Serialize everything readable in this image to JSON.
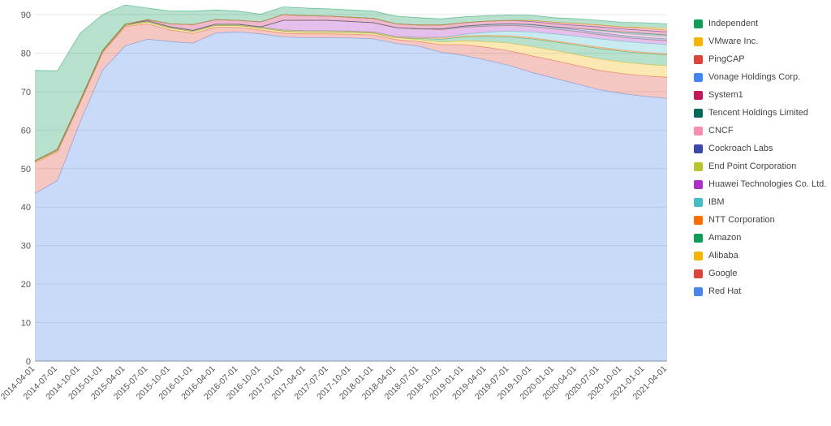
{
  "chart_data": {
    "type": "area",
    "stacked": true,
    "categories": [
      "2014-04-01",
      "2014-07-01",
      "2014-10-01",
      "2015-01-01",
      "2015-04-01",
      "2015-07-01",
      "2015-10-01",
      "2016-01-01",
      "2016-04-01",
      "2016-07-01",
      "2016-10-01",
      "2017-01-01",
      "2017-04-01",
      "2017-07-01",
      "2017-10-01",
      "2018-01-01",
      "2018-04-01",
      "2018-07-01",
      "2018-10-01",
      "2019-01-01",
      "2019-04-01",
      "2019-07-01",
      "2019-10-01",
      "2020-01-01",
      "2020-04-01",
      "2020-07-01",
      "2020-10-01",
      "2021-01-01",
      "2021-04-01"
    ],
    "ylim": [
      0,
      90
    ],
    "yticks": [
      0,
      10,
      20,
      30,
      40,
      50,
      60,
      70,
      80,
      90
    ],
    "grid": true,
    "legend_position": "right",
    "series": [
      {
        "name": "Red Hat",
        "color": "#4a86e8",
        "values": [
          43.5,
          46.9,
          62,
          75.6,
          81.9,
          83.6,
          83,
          82.6,
          85.2,
          85.5,
          85,
          84.2,
          84,
          84,
          83.9,
          83.7,
          82.5,
          81.8,
          80.2,
          79.4,
          78.2,
          76.8,
          75,
          73.5,
          72,
          70.5,
          69.5,
          68.8,
          68.2
        ]
      },
      {
        "name": "Google",
        "color": "#db4437",
        "values": [
          8,
          7.5,
          5,
          4.5,
          5,
          4,
          3,
          2.5,
          1.5,
          1.2,
          1,
          1,
          1,
          1,
          1,
          1,
          1,
          1.2,
          2,
          2.8,
          3.3,
          3.8,
          4.3,
          4.6,
          4.8,
          5,
          5.2,
          5.3,
          5.5
        ]
      },
      {
        "name": "Alibaba",
        "color": "#f4b400",
        "values": [
          0.3,
          0.3,
          0.3,
          0.3,
          0.3,
          0.5,
          0.5,
          0.5,
          0.5,
          0.5,
          0.5,
          0.5,
          0.5,
          0.5,
          0.5,
          0.5,
          0.5,
          0.5,
          0.7,
          1,
          1.5,
          2,
          2.4,
          2.6,
          2.8,
          3,
          3,
          3,
          3
        ]
      },
      {
        "name": "Amazon",
        "color": "#0f9d58",
        "values": [
          0,
          0,
          0,
          0,
          0,
          0,
          0,
          0,
          0,
          0,
          0,
          0,
          0,
          0,
          0,
          0,
          0,
          0.3,
          0.7,
          1,
          1.3,
          1.6,
          2,
          2.2,
          2.5,
          2.7,
          2.8,
          2.8,
          2.8
        ]
      },
      {
        "name": "NTT Corporation",
        "color": "#ff6d01",
        "values": [
          0.2,
          0.3,
          0.3,
          0.3,
          0.3,
          0.3,
          0.3,
          0.3,
          0.3,
          0.3,
          0.3,
          0.3,
          0.3,
          0.3,
          0.3,
          0.3,
          0.3,
          0.3,
          0.3,
          0.3,
          0.3,
          0.3,
          0.3,
          0.3,
          0.3,
          0.3,
          0.3,
          0.3,
          0.3
        ]
      },
      {
        "name": "IBM",
        "color": "#46bdc6",
        "values": [
          0,
          0,
          0,
          0,
          0,
          0,
          0,
          0,
          0,
          0,
          0,
          0,
          0,
          0,
          0,
          0,
          0,
          0,
          0.2,
          0.4,
          0.8,
          1.2,
          1.5,
          1.8,
          2,
          2.2,
          2.3,
          2.4,
          2.4
        ]
      },
      {
        "name": "Huawei Technologies Co. Ltd.",
        "color": "#ab30c4",
        "values": [
          0,
          0,
          0,
          0,
          0,
          0,
          0,
          0,
          0,
          0,
          0,
          2.5,
          2.7,
          2.7,
          2.5,
          2.4,
          2.3,
          2.2,
          2,
          1.8,
          1.6,
          1.5,
          1.4,
          1.3,
          1.2,
          1.1,
          1,
          1,
          1
        ]
      },
      {
        "name": "End Point Corporation",
        "color": "#b9c32e",
        "values": [
          0,
          0,
          0,
          0,
          0,
          0,
          0,
          0,
          0,
          0,
          0,
          0,
          0,
          0,
          0,
          0,
          0,
          0,
          0,
          0,
          0,
          0,
          0,
          0,
          0,
          0,
          0,
          0,
          0
        ]
      },
      {
        "name": "Cockroach Labs",
        "color": "#3949ab",
        "values": [
          0,
          0,
          0,
          0,
          0,
          0,
          0,
          0,
          0,
          0,
          0,
          0,
          0,
          0,
          0,
          0,
          0,
          0,
          0.2,
          0.3,
          0.4,
          0.4,
          0.5,
          0.5,
          0.5,
          0.5,
          0.5,
          0.5,
          0.5
        ]
      },
      {
        "name": "CNCF",
        "color": "#f48fb1",
        "values": [
          0,
          0,
          0,
          0,
          0,
          0,
          0,
          0,
          0,
          0,
          0,
          0,
          0,
          0,
          0,
          0,
          0,
          0,
          0,
          0,
          0,
          0,
          0,
          0,
          0.3,
          0.4,
          0.5,
          0.5,
          0.5
        ]
      },
      {
        "name": "Tencent Holdings Limited",
        "color": "#00695c",
        "values": [
          0,
          0,
          0,
          0,
          0,
          0,
          0,
          0,
          0,
          0,
          0,
          0,
          0,
          0,
          0,
          0,
          0,
          0,
          0,
          0,
          0,
          0,
          0,
          0,
          0,
          0.3,
          0.4,
          0.5,
          0.5
        ]
      },
      {
        "name": "System1",
        "color": "#c2185b",
        "values": [
          0,
          0,
          0,
          0,
          0,
          0.3,
          0.8,
          1.5,
          1.2,
          1,
          1.3,
          1.5,
          1.2,
          1.1,
          1.1,
          1.1,
          1,
          1,
          1,
          0.9,
          0.9,
          0.9,
          0.8,
          0.8,
          0.8,
          0.8,
          0.8,
          0.8,
          0.8
        ]
      },
      {
        "name": "Vonage Holdings Corp.",
        "color": "#4285f4",
        "values": [
          0,
          0,
          0,
          0,
          0,
          0,
          0,
          0,
          0,
          0,
          0,
          0,
          0,
          0,
          0,
          0,
          0,
          0,
          0,
          0,
          0,
          0,
          0,
          0,
          0,
          0,
          0,
          0,
          0
        ]
      },
      {
        "name": "PingCAP",
        "color": "#db4437",
        "values": [
          0,
          0,
          0,
          0,
          0,
          0,
          0,
          0,
          0,
          0,
          0,
          0,
          0,
          0,
          0,
          0,
          0,
          0,
          0,
          0,
          0,
          0,
          0.3,
          0.4,
          0.5,
          0.5,
          0.5,
          0.5,
          0.5
        ]
      },
      {
        "name": "VMware Inc.",
        "color": "#f4b400",
        "values": [
          0,
          0,
          0,
          0,
          0,
          0,
          0,
          0,
          0,
          0,
          0,
          0,
          0,
          0,
          0,
          0,
          0,
          0,
          0,
          0,
          0,
          0,
          0,
          0,
          0,
          0,
          0,
          0.3,
          0.4
        ]
      },
      {
        "name": "Independent",
        "color": "#0f9d58",
        "values": [
          23.5,
          20.4,
          17.5,
          9.3,
          5,
          3,
          3.3,
          3.5,
          2.5,
          2.4,
          2,
          2,
          2,
          1.9,
          1.9,
          1.9,
          2,
          1.9,
          1.6,
          1.5,
          1.4,
          1.4,
          1.3,
          1.2,
          1.2,
          1.2,
          1.2,
          1.2,
          1.2
        ]
      }
    ]
  }
}
